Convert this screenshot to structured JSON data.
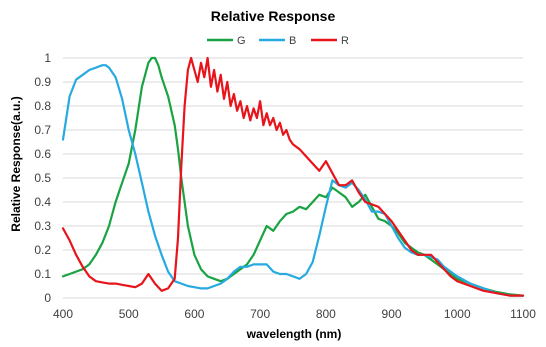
{
  "chart_data": {
    "type": "line",
    "title": "Relative Response",
    "xlabel": "wavelength (nm)",
    "ylabel": "Relative Response(a.u.)",
    "xlim": [
      400,
      1100
    ],
    "ylim": [
      0,
      1
    ],
    "xticks": [
      "400",
      "500",
      "600",
      "700",
      "800",
      "900",
      "1000",
      "1100"
    ],
    "yticks": [
      "0",
      "0.1",
      "0.2",
      "0.3",
      "0.4",
      "0.5",
      "0.6",
      "0.7",
      "0.8",
      "0.9",
      "1"
    ],
    "grid": "horizontal",
    "legend_position": "top",
    "series": [
      {
        "name": "G",
        "color": "#1aa342",
        "x": [
          400,
          410,
          420,
          430,
          440,
          450,
          460,
          470,
          480,
          490,
          500,
          510,
          520,
          530,
          535,
          540,
          545,
          550,
          560,
          570,
          575,
          580,
          590,
          600,
          610,
          620,
          630,
          640,
          650,
          660,
          670,
          680,
          690,
          700,
          710,
          720,
          730,
          740,
          750,
          760,
          770,
          780,
          790,
          800,
          810,
          820,
          830,
          840,
          850,
          860,
          870,
          880,
          890,
          900,
          910,
          920,
          930,
          940,
          950,
          960,
          970,
          980,
          990,
          1000,
          1020,
          1040,
          1060,
          1080,
          1100
        ],
        "y": [
          0.09,
          0.1,
          0.11,
          0.12,
          0.14,
          0.18,
          0.23,
          0.3,
          0.4,
          0.48,
          0.56,
          0.7,
          0.88,
          0.98,
          1.0,
          1.0,
          0.97,
          0.92,
          0.84,
          0.72,
          0.62,
          0.5,
          0.3,
          0.18,
          0.12,
          0.09,
          0.08,
          0.07,
          0.08,
          0.1,
          0.12,
          0.14,
          0.18,
          0.24,
          0.3,
          0.28,
          0.32,
          0.35,
          0.36,
          0.38,
          0.37,
          0.4,
          0.43,
          0.42,
          0.46,
          0.44,
          0.42,
          0.38,
          0.4,
          0.43,
          0.38,
          0.33,
          0.32,
          0.3,
          0.27,
          0.23,
          0.21,
          0.19,
          0.18,
          0.16,
          0.14,
          0.12,
          0.1,
          0.08,
          0.06,
          0.04,
          0.025,
          0.015,
          0.01
        ]
      },
      {
        "name": "B",
        "color": "#27aae1",
        "x": [
          400,
          405,
          410,
          420,
          430,
          440,
          450,
          460,
          465,
          470,
          480,
          490,
          500,
          510,
          520,
          530,
          540,
          550,
          560,
          570,
          580,
          590,
          600,
          610,
          620,
          630,
          640,
          650,
          660,
          670,
          680,
          690,
          700,
          710,
          720,
          730,
          740,
          750,
          760,
          770,
          780,
          790,
          800,
          810,
          820,
          830,
          840,
          850,
          860,
          870,
          880,
          890,
          900,
          910,
          920,
          930,
          940,
          950,
          960,
          970,
          980,
          990,
          1000,
          1020,
          1040,
          1060,
          1080,
          1100
        ],
        "y": [
          0.66,
          0.75,
          0.84,
          0.91,
          0.93,
          0.95,
          0.96,
          0.97,
          0.97,
          0.96,
          0.92,
          0.83,
          0.7,
          0.6,
          0.48,
          0.36,
          0.26,
          0.18,
          0.11,
          0.07,
          0.06,
          0.05,
          0.045,
          0.04,
          0.04,
          0.05,
          0.06,
          0.08,
          0.11,
          0.13,
          0.13,
          0.14,
          0.14,
          0.14,
          0.11,
          0.1,
          0.1,
          0.09,
          0.08,
          0.1,
          0.15,
          0.26,
          0.38,
          0.49,
          0.47,
          0.46,
          0.48,
          0.45,
          0.41,
          0.36,
          0.36,
          0.35,
          0.3,
          0.25,
          0.21,
          0.19,
          0.18,
          0.18,
          0.17,
          0.16,
          0.13,
          0.11,
          0.09,
          0.06,
          0.04,
          0.02,
          0.01,
          0.01
        ]
      },
      {
        "name": "R",
        "color": "#e8141b",
        "x": [
          400,
          410,
          420,
          430,
          440,
          450,
          460,
          470,
          480,
          490,
          500,
          510,
          520,
          530,
          540,
          550,
          560,
          570,
          575,
          580,
          585,
          590,
          595,
          600,
          605,
          610,
          615,
          620,
          625,
          630,
          635,
          640,
          645,
          650,
          655,
          660,
          665,
          670,
          675,
          680,
          685,
          690,
          695,
          700,
          705,
          710,
          715,
          720,
          725,
          730,
          735,
          740,
          745,
          750,
          760,
          770,
          780,
          790,
          800,
          810,
          820,
          830,
          840,
          850,
          860,
          870,
          880,
          890,
          900,
          910,
          920,
          930,
          940,
          950,
          960,
          970,
          980,
          990,
          1000,
          1020,
          1040,
          1060,
          1080,
          1100
        ],
        "y": [
          0.29,
          0.24,
          0.18,
          0.13,
          0.09,
          0.07,
          0.065,
          0.06,
          0.06,
          0.055,
          0.05,
          0.045,
          0.06,
          0.1,
          0.06,
          0.03,
          0.04,
          0.08,
          0.25,
          0.55,
          0.8,
          0.95,
          1.0,
          0.95,
          0.9,
          0.98,
          0.92,
          1.0,
          0.88,
          0.95,
          0.86,
          0.93,
          0.83,
          0.9,
          0.8,
          0.85,
          0.78,
          0.82,
          0.75,
          0.8,
          0.74,
          0.79,
          0.75,
          0.82,
          0.72,
          0.77,
          0.72,
          0.75,
          0.7,
          0.73,
          0.68,
          0.7,
          0.66,
          0.64,
          0.62,
          0.59,
          0.56,
          0.53,
          0.57,
          0.52,
          0.47,
          0.47,
          0.49,
          0.44,
          0.4,
          0.39,
          0.38,
          0.35,
          0.32,
          0.28,
          0.24,
          0.2,
          0.18,
          0.18,
          0.18,
          0.15,
          0.12,
          0.09,
          0.07,
          0.05,
          0.03,
          0.02,
          0.01,
          0.01
        ]
      }
    ]
  }
}
